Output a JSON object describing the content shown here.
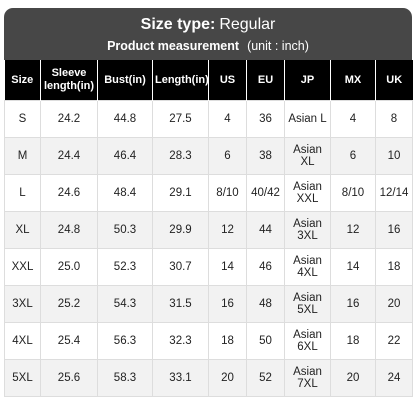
{
  "header": {
    "size_type_label": "Size type:",
    "size_type": "Regular",
    "measurement_label": "Product measurement",
    "unit": "(unit : inch)"
  },
  "table": {
    "columns": [
      "Size",
      "Sleeve length(in)",
      "Bust(in)",
      "Length(in)",
      "US",
      "EU",
      "JP",
      "MX",
      "UK"
    ],
    "rows": [
      [
        "S",
        "24.2",
        "44.8",
        "27.5",
        "4",
        "36",
        "Asian L",
        "4",
        "8"
      ],
      [
        "M",
        "24.4",
        "46.4",
        "28.3",
        "6",
        "38",
        "Asian XL",
        "6",
        "10"
      ],
      [
        "L",
        "24.6",
        "48.4",
        "29.1",
        "8/10",
        "40/42",
        "Asian XXL",
        "8/10",
        "12/14"
      ],
      [
        "XL",
        "24.8",
        "50.3",
        "29.9",
        "12",
        "44",
        "Asian 3XL",
        "12",
        "16"
      ],
      [
        "XXL",
        "25.0",
        "52.3",
        "30.7",
        "14",
        "46",
        "Asian 4XL",
        "14",
        "18"
      ],
      [
        "3XL",
        "25.2",
        "54.3",
        "31.5",
        "16",
        "48",
        "Asian 5XL",
        "16",
        "20"
      ],
      [
        "4XL",
        "25.4",
        "56.3",
        "32.3",
        "18",
        "50",
        "Asian 6XL",
        "18",
        "22"
      ],
      [
        "5XL",
        "25.6",
        "58.3",
        "33.1",
        "20",
        "52",
        "Asian 7XL",
        "20",
        "24"
      ]
    ]
  }
}
